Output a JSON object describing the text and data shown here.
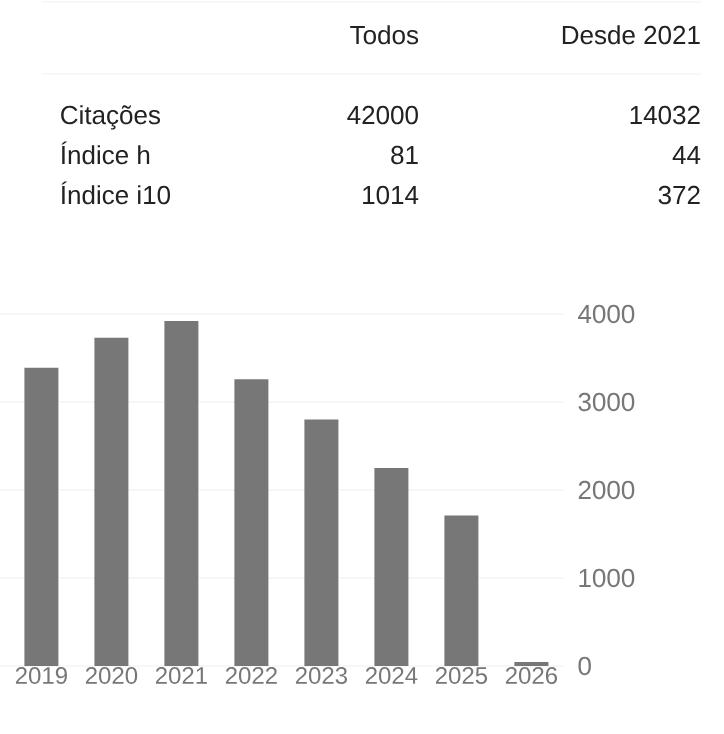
{
  "chart_data": [
    {
      "type": "other",
      "annotations": [
        "Todos",
        "Desde 2021",
        "Citações",
        "42000",
        "14032",
        "Índice h",
        "81",
        "44",
        "Índice i10",
        "1014",
        "372"
      ]
    },
    {
      "type": "bar",
      "categories": [
        "2019",
        "2020",
        "2021",
        "2022",
        "2023",
        "2024",
        "2025",
        "2026"
      ],
      "values": [
        3390,
        3730,
        3920,
        3260,
        2800,
        2250,
        1710,
        45
      ],
      "color": "#777777",
      "ylim": [
        0,
        4000
      ],
      "yticks": [
        0,
        1000,
        2000,
        3000,
        4000
      ],
      "grid": "y"
    }
  ]
}
